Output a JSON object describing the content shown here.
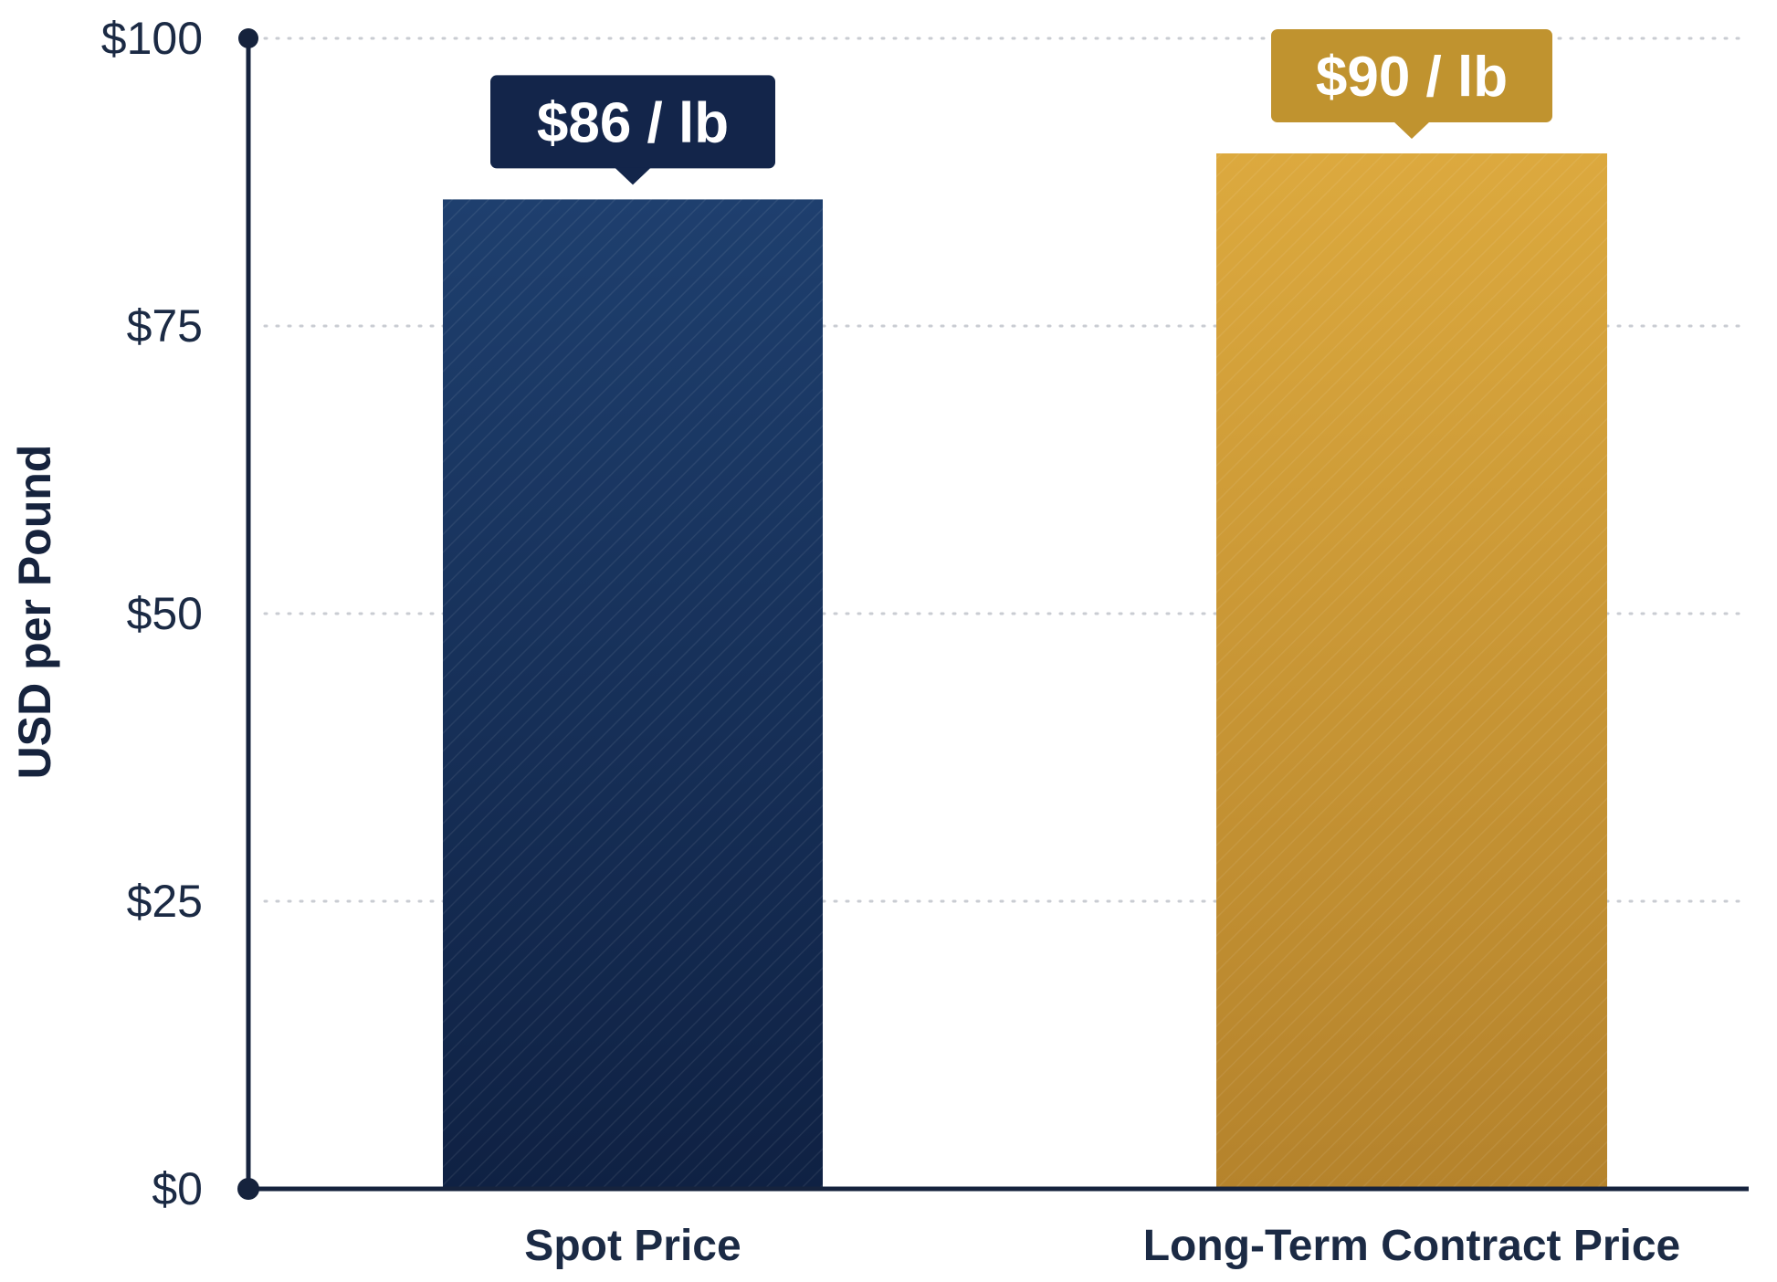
{
  "chart_data": {
    "type": "bar",
    "categories": [
      "Spot Price",
      "Long-Term Contract Price"
    ],
    "values": [
      86,
      90
    ],
    "data_labels": [
      "$86 / lb",
      "$90 / lb"
    ],
    "title": "",
    "xlabel": "",
    "ylabel": "USD per Pound",
    "ylim": [
      0,
      100
    ],
    "yticks": [
      0,
      25,
      50,
      75,
      100
    ],
    "ytick_labels": [
      "$0",
      "$25",
      "$50",
      "$75",
      "$100"
    ],
    "grid": "horizontal-dotted",
    "legend": "none",
    "colors": {
      "bars": [
        "#1e3f6e",
        "#dca93e"
      ],
      "bars_dark": [
        "#0f2143",
        "#b5832c"
      ],
      "callouts": [
        "#13254a",
        "#c0932f"
      ],
      "axis": "#16233d",
      "grid": "#c9ccd2"
    }
  }
}
